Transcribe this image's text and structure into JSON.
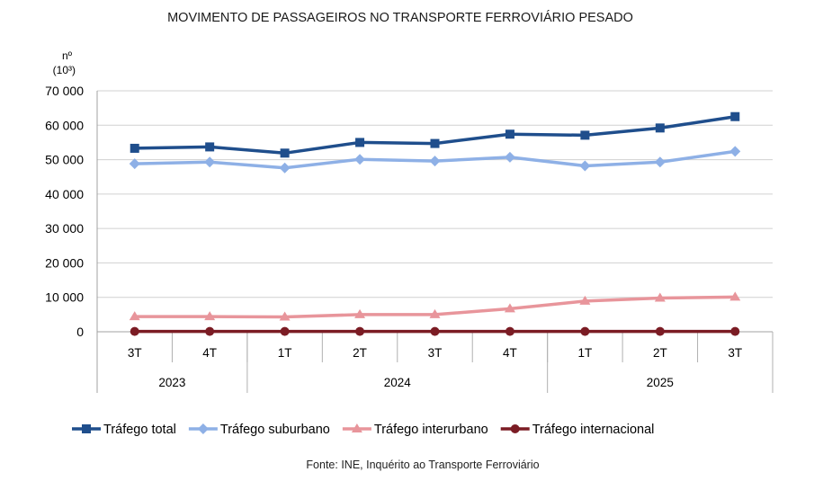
{
  "chart_data": {
    "type": "line",
    "title": "MOVIMENTO DE PASSAGEIROS NO TRANSPORTE FERROVIÁRIO PESADO",
    "ylabel_line1": "nº",
    "ylabel_line2": "(10³)",
    "xlabel": "",
    "ylim": [
      0,
      70000
    ],
    "yticks": [
      0,
      10000,
      20000,
      30000,
      40000,
      50000,
      60000,
      70000
    ],
    "ytick_labels": [
      "0",
      "10 000",
      "20 000",
      "30 000",
      "40 000",
      "50 000",
      "60 000",
      "70 000"
    ],
    "grid": true,
    "categories": [
      "3T",
      "4T",
      "1T",
      "2T",
      "3T",
      "4T",
      "1T",
      "2T",
      "3T"
    ],
    "groups": [
      {
        "label": "2023",
        "count": 2
      },
      {
        "label": "2024",
        "count": 4
      },
      {
        "label": "2025",
        "count": 3
      }
    ],
    "series": [
      {
        "name": "Tráfego total",
        "color": "#1f4e8c",
        "marker": "square",
        "values": [
          53300,
          53700,
          51900,
          55000,
          54700,
          57400,
          57100,
          59200,
          62500
        ]
      },
      {
        "name": "Tráfego suburbano",
        "color": "#8eb0e6",
        "marker": "diamond",
        "values": [
          48800,
          49300,
          47600,
          50100,
          49600,
          50700,
          48200,
          49300,
          52400
        ]
      },
      {
        "name": "Tráfego interurbano",
        "color": "#e8959b",
        "marker": "triangle",
        "values": [
          4400,
          4400,
          4300,
          5000,
          5000,
          6700,
          8900,
          9800,
          10100
        ]
      },
      {
        "name": "Tráfego internacional",
        "color": "#7b1c24",
        "marker": "circle",
        "values": [
          100,
          100,
          100,
          100,
          100,
          100,
          100,
          100,
          100
        ]
      }
    ],
    "legend_position": "bottom",
    "source": "Fonte: INE, Inquérito ao Transporte Ferroviário"
  }
}
